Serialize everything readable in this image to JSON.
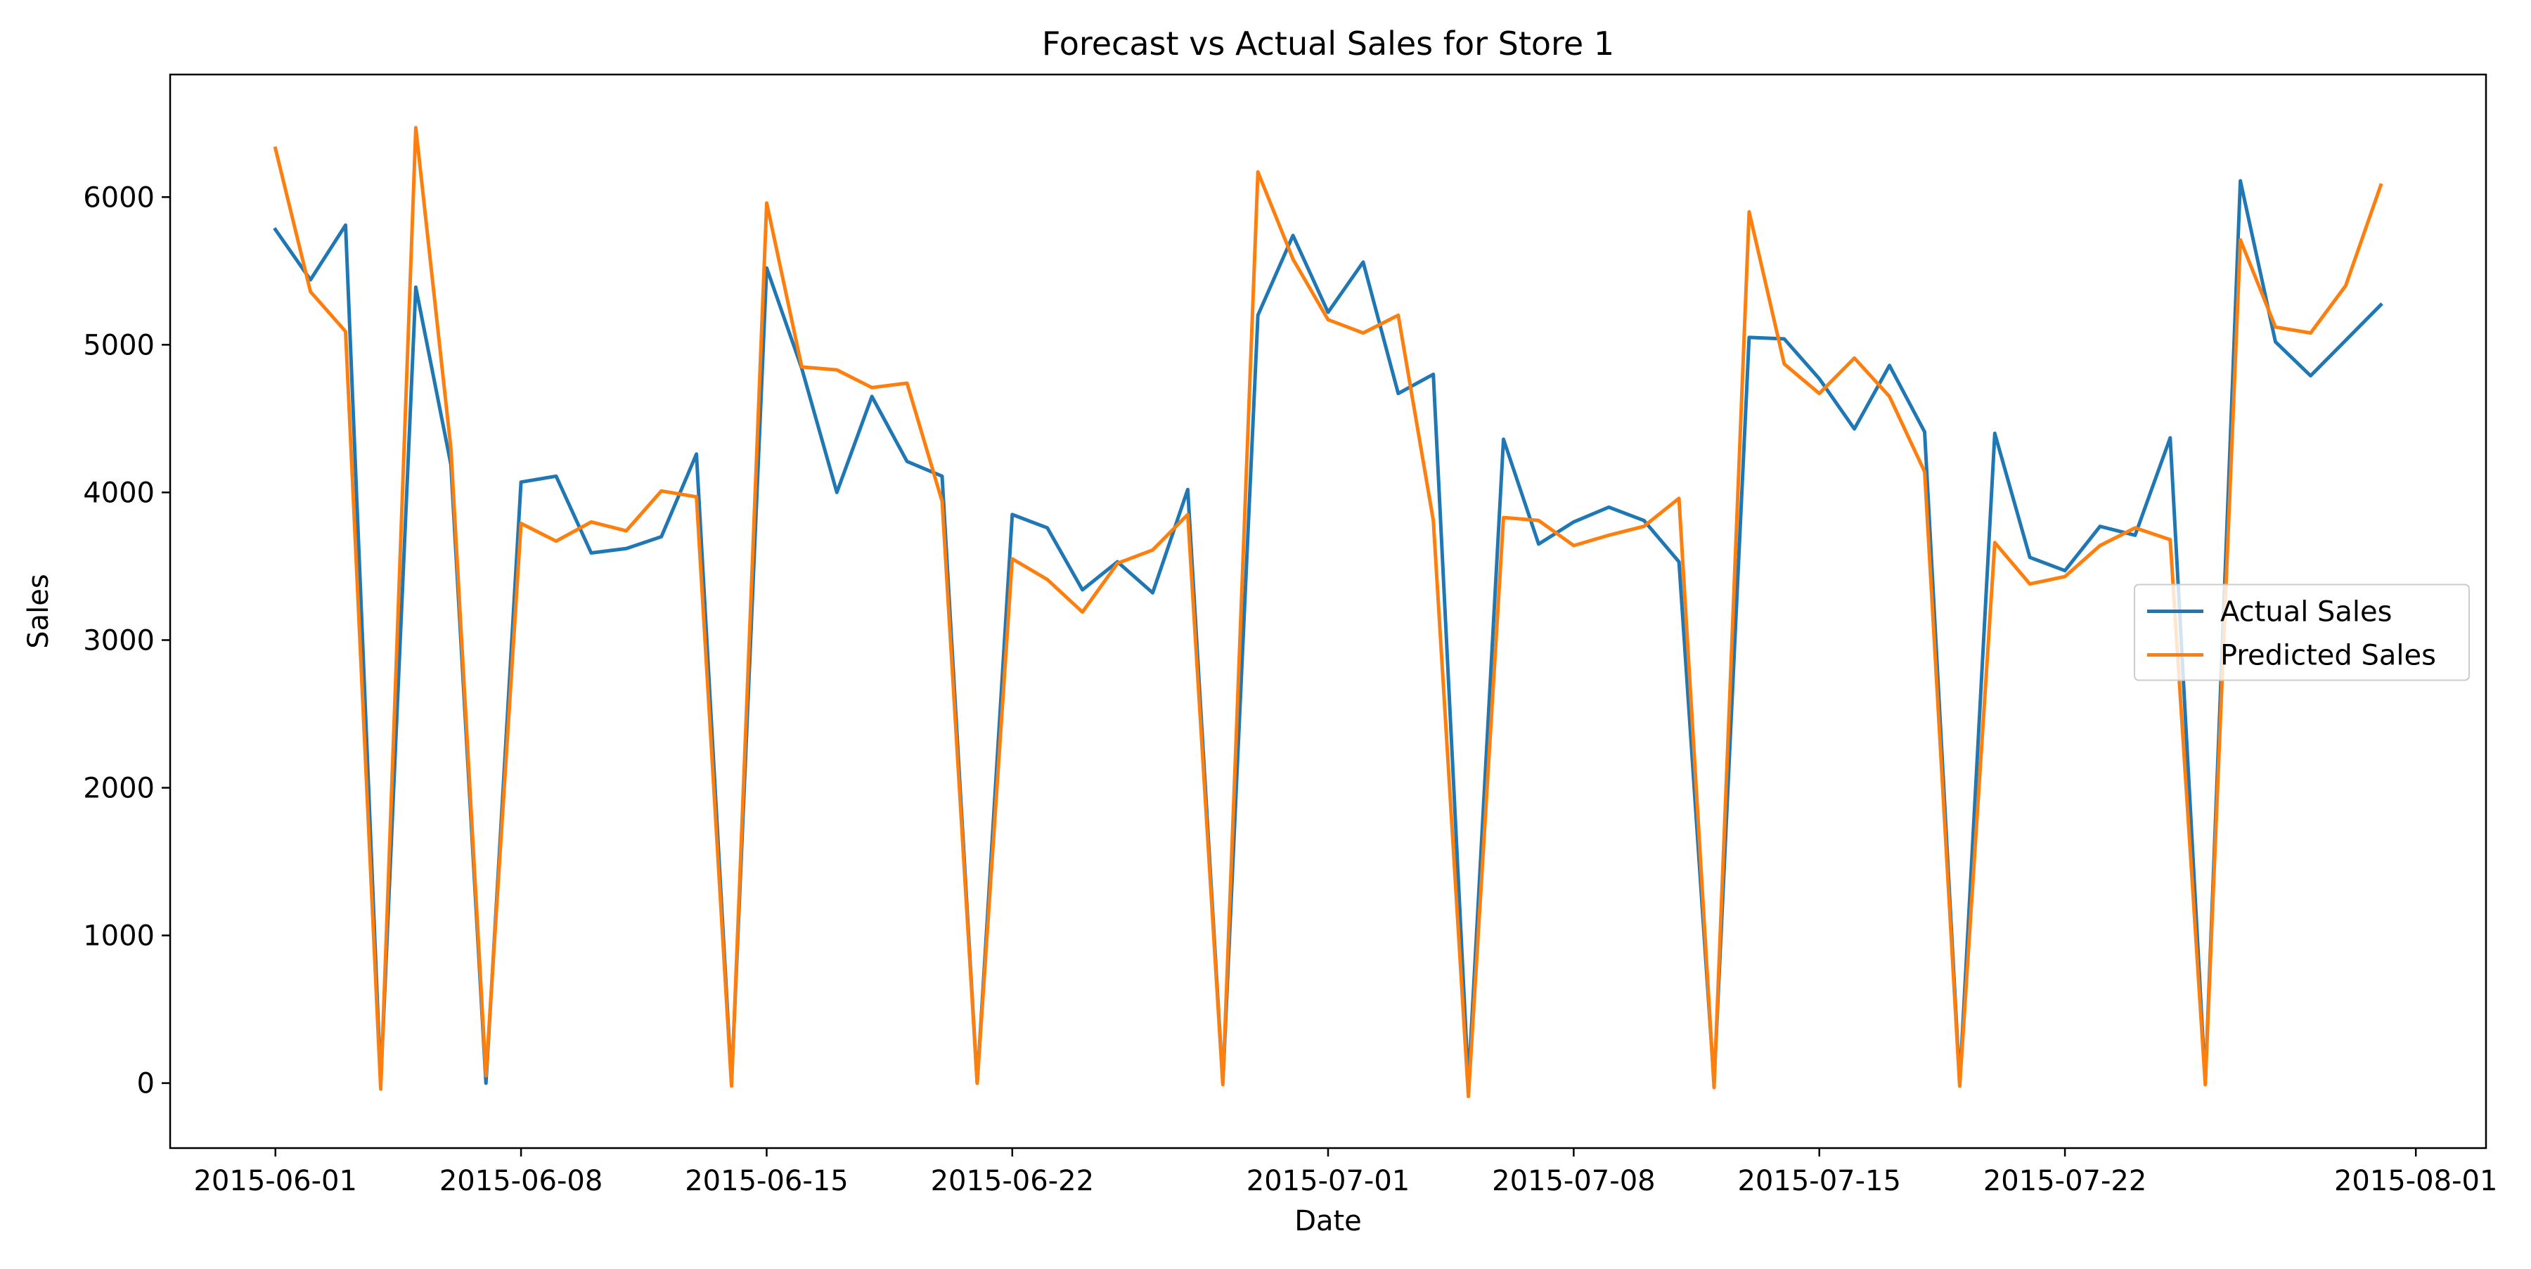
{
  "chart_data": {
    "type": "line",
    "title": "Forecast vs Actual Sales for Store 1",
    "xlabel": "Date",
    "ylabel": "Sales",
    "ylim": [
      -440,
      6830
    ],
    "xlim": [
      "2015-05-29",
      "2015-08-03"
    ],
    "y_ticks": [
      "0",
      "1000",
      "2000",
      "3000",
      "4000",
      "5000",
      "6000"
    ],
    "x_ticks": [
      "2015-06-01",
      "2015-06-08",
      "2015-06-15",
      "2015-06-22",
      "2015-07-01",
      "2015-07-08",
      "2015-07-15",
      "2015-07-22",
      "2015-08-01"
    ],
    "grid": false,
    "legend_position": "center-right",
    "x": [
      "2015-06-01",
      "2015-06-02",
      "2015-06-03",
      "2015-06-04",
      "2015-06-05",
      "2015-06-06",
      "2015-06-07",
      "2015-06-08",
      "2015-06-09",
      "2015-06-10",
      "2015-06-11",
      "2015-06-12",
      "2015-06-13",
      "2015-06-14",
      "2015-06-15",
      "2015-06-16",
      "2015-06-17",
      "2015-06-18",
      "2015-06-19",
      "2015-06-20",
      "2015-06-21",
      "2015-06-22",
      "2015-06-23",
      "2015-06-24",
      "2015-06-25",
      "2015-06-26",
      "2015-06-27",
      "2015-06-28",
      "2015-06-29",
      "2015-06-30",
      "2015-07-01",
      "2015-07-02",
      "2015-07-03",
      "2015-07-04",
      "2015-07-05",
      "2015-07-06",
      "2015-07-07",
      "2015-07-08",
      "2015-07-09",
      "2015-07-10",
      "2015-07-11",
      "2015-07-12",
      "2015-07-13",
      "2015-07-14",
      "2015-07-15",
      "2015-07-16",
      "2015-07-17",
      "2015-07-18",
      "2015-07-19",
      "2015-07-20",
      "2015-07-21",
      "2015-07-22",
      "2015-07-23",
      "2015-07-24",
      "2015-07-25",
      "2015-07-26",
      "2015-07-27",
      "2015-07-28",
      "2015-07-29",
      "2015-07-30",
      "2015-07-31"
    ],
    "series": [
      {
        "name": "Actual Sales",
        "color": "#1f77b4",
        "values": [
          5780,
          5440,
          5810,
          0,
          5390,
          4190,
          0,
          4070,
          4110,
          3590,
          3620,
          3700,
          4260,
          0,
          5520,
          4840,
          4000,
          4650,
          4210,
          4110,
          0,
          3850,
          3760,
          3340,
          3530,
          3320,
          4020,
          0,
          5200,
          5740,
          5220,
          5560,
          4670,
          4800,
          0,
          4360,
          3650,
          3800,
          3900,
          3810,
          3530,
          0,
          5050,
          5040,
          4770,
          4430,
          4860,
          4410,
          0,
          4400,
          3560,
          3470,
          3770,
          3710,
          4370,
          0,
          6110,
          5020,
          4790,
          5030,
          5270
        ]
      },
      {
        "name": "Predicted Sales",
        "color": "#ff7f0e",
        "values": [
          6330,
          5360,
          5090,
          -40,
          6470,
          4300,
          50,
          3790,
          3670,
          3800,
          3740,
          4010,
          3970,
          -20,
          5960,
          4850,
          4830,
          4710,
          4740,
          3940,
          0,
          3550,
          3410,
          3190,
          3520,
          3610,
          3850,
          -10,
          6170,
          5580,
          5170,
          5080,
          5200,
          3810,
          -90,
          3830,
          3810,
          3640,
          3710,
          3770,
          3960,
          -30,
          5900,
          4870,
          4670,
          4910,
          4650,
          4140,
          -20,
          3660,
          3380,
          3430,
          3640,
          3760,
          3680,
          -10,
          5710,
          5120,
          5080,
          5400,
          6080
        ]
      }
    ]
  }
}
